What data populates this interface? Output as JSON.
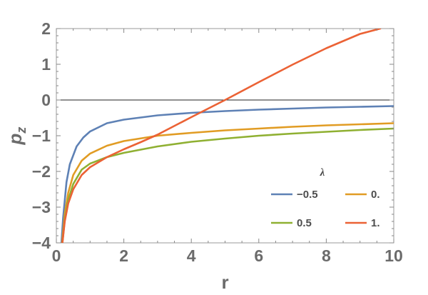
{
  "chart_data": {
    "type": "line",
    "title": "",
    "xlabel": "r",
    "ylabel": "p",
    "ylabel_sub": "z",
    "xlim": [
      0,
      10
    ],
    "ylim": [
      -4,
      2
    ],
    "xticks": [
      "0",
      "2",
      "4",
      "6",
      "8",
      "10"
    ],
    "yticks": [
      "−4",
      "−3",
      "−2",
      "−1",
      "0",
      "1",
      "2"
    ],
    "grid": false,
    "legend": {
      "title": "λ",
      "placement": "lower-right"
    },
    "series": [
      {
        "name": "−0.5",
        "color": "#5e81b5",
        "x": [
          0.15,
          0.2,
          0.3,
          0.4,
          0.6,
          0.8,
          1.0,
          1.5,
          2.0,
          3.0,
          4.0,
          5.0,
          6.0,
          7.0,
          8.0,
          9.0,
          10.0
        ],
        "y": [
          -4.0,
          -3.3,
          -2.3,
          -1.8,
          -1.3,
          -1.05,
          -0.88,
          -0.65,
          -0.55,
          -0.43,
          -0.36,
          -0.31,
          -0.27,
          -0.24,
          -0.21,
          -0.19,
          -0.17
        ]
      },
      {
        "name": "0.",
        "color": "#e19c24",
        "x": [
          0.17,
          0.25,
          0.35,
          0.5,
          0.75,
          1.0,
          1.5,
          2.0,
          3.0,
          4.0,
          5.0,
          6.0,
          7.0,
          8.0,
          9.0,
          10.0
        ],
        "y": [
          -4.0,
          -3.2,
          -2.6,
          -2.1,
          -1.7,
          -1.5,
          -1.28,
          -1.15,
          -1.0,
          -0.92,
          -0.85,
          -0.8,
          -0.75,
          -0.71,
          -0.68,
          -0.65
        ]
      },
      {
        "name": "0.5",
        "color": "#8fb032",
        "x": [
          0.18,
          0.25,
          0.35,
          0.5,
          0.75,
          1.0,
          1.5,
          2.0,
          3.0,
          4.0,
          5.0,
          6.0,
          7.0,
          8.0,
          9.0,
          10.0
        ],
        "y": [
          -4.0,
          -3.35,
          -2.8,
          -2.35,
          -1.95,
          -1.78,
          -1.6,
          -1.48,
          -1.3,
          -1.17,
          -1.08,
          -1.0,
          -0.94,
          -0.89,
          -0.84,
          -0.8
        ]
      },
      {
        "name": "1.",
        "color": "#eb6235",
        "x": [
          0.18,
          0.25,
          0.35,
          0.5,
          0.75,
          1.0,
          1.5,
          2.0,
          2.5,
          3.0,
          4.0,
          5.0,
          6.0,
          7.0,
          8.0,
          9.0,
          9.6
        ],
        "y": [
          -4.0,
          -3.4,
          -2.9,
          -2.5,
          -2.1,
          -1.88,
          -1.6,
          -1.38,
          -1.18,
          -0.97,
          -0.48,
          0.0,
          0.5,
          0.99,
          1.45,
          1.85,
          2.0
        ]
      }
    ]
  }
}
